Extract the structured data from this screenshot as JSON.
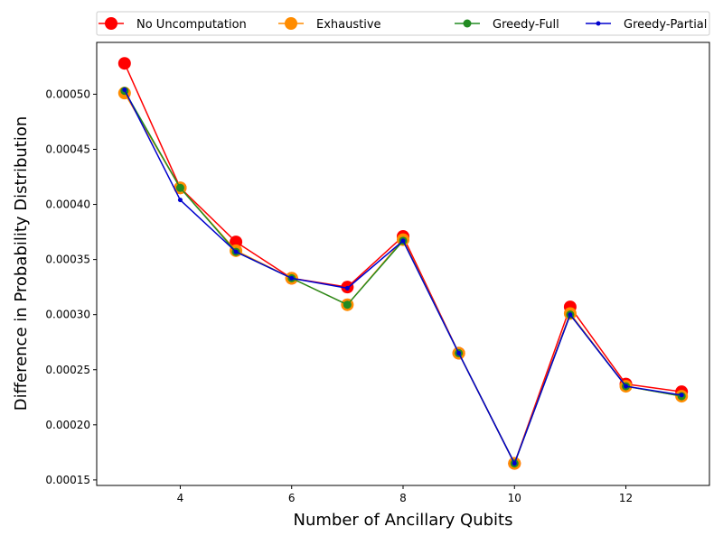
{
  "chart_data": {
    "type": "line",
    "xlabel": "Number of Ancillary Qubits",
    "ylabel": "Difference in Probability Distribution",
    "xlim": [
      2.5,
      13.5
    ],
    "ylim": [
      0.000145,
      0.000547
    ],
    "xticks": [
      4,
      6,
      8,
      10,
      12
    ],
    "xtick_labels": [
      "4",
      "6",
      "8",
      "10",
      "12"
    ],
    "yticks": [
      0.00015,
      0.0002,
      0.00025,
      0.0003,
      0.00035,
      0.0004,
      0.00045,
      0.0005
    ],
    "ytick_labels": [
      "0.00015",
      "0.00020",
      "0.00025",
      "0.00030",
      "0.00035",
      "0.00040",
      "0.00045",
      "0.00050"
    ],
    "grid": false,
    "legend_position": "top",
    "x": [
      3,
      4,
      5,
      6,
      7,
      8,
      9,
      10,
      11,
      12,
      13
    ],
    "series": [
      {
        "name": "No Uncomputation",
        "color": "#ff0000",
        "marker_size": 14,
        "values": [
          0.000528,
          0.000415,
          0.000366,
          0.000333,
          0.000325,
          0.000371,
          0.000265,
          0.000165,
          0.000307,
          0.000237,
          0.00023
        ]
      },
      {
        "name": "Exhaustive",
        "color": "#ff8c00",
        "marker_size": 14,
        "values": [
          0.000501,
          0.000415,
          0.000358,
          0.000333,
          0.000309,
          0.000368,
          0.000265,
          0.000165,
          0.000301,
          0.000235,
          0.000226
        ]
      },
      {
        "name": "Greedy-Full",
        "color": "#228b22",
        "marker_size": 9,
        "values": [
          0.000503,
          0.000415,
          0.000357,
          0.000333,
          0.000309,
          0.000367,
          0.000265,
          0.000165,
          0.0003,
          0.000235,
          0.000226
        ]
      },
      {
        "name": "Greedy-Partial",
        "color": "#0000cd",
        "marker_size": 5,
        "values": [
          0.000504,
          0.000404,
          0.000357,
          0.000333,
          0.000324,
          0.000367,
          0.000265,
          0.000165,
          0.0003,
          0.000235,
          0.000227
        ]
      }
    ]
  }
}
